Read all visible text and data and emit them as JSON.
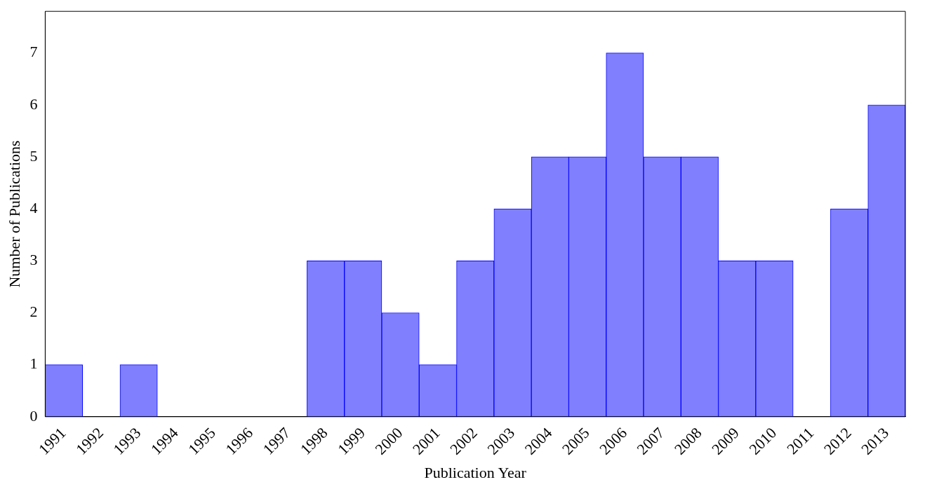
{
  "chart_data": {
    "type": "bar",
    "xlabel": "Publication Year",
    "ylabel": "Number of Publications",
    "categories": [
      "1991",
      "1992",
      "1993",
      "1994",
      "1995",
      "1996",
      "1997",
      "1998",
      "1999",
      "2000",
      "2001",
      "2002",
      "2003",
      "2004",
      "2005",
      "2006",
      "2007",
      "2008",
      "2009",
      "2010",
      "2011",
      "2012",
      "2013"
    ],
    "series": [
      {
        "color": "#8080ff",
        "values": [
          1,
          0,
          1,
          0,
          0,
          0,
          0,
          3,
          3,
          2,
          1,
          3,
          4,
          5,
          5,
          7,
          5,
          5,
          3,
          3,
          0,
          4,
          6
        ]
      }
    ],
    "ylim": [
      0,
      7.8
    ],
    "yticks": [
      0,
      1,
      2,
      3,
      4,
      5,
      6,
      7
    ],
    "grid": false,
    "legend": false
  }
}
